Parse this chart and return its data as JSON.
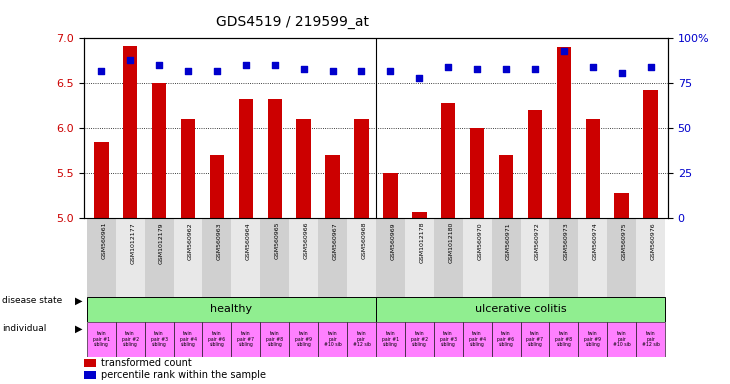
{
  "title": "GDS4519 / 219599_at",
  "samples": [
    "GSM560961",
    "GSM1012177",
    "GSM1012179",
    "GSM560962",
    "GSM560963",
    "GSM560964",
    "GSM560965",
    "GSM560966",
    "GSM560967",
    "GSM560968",
    "GSM560969",
    "GSM1012178",
    "GSM1012180",
    "GSM560970",
    "GSM560971",
    "GSM560972",
    "GSM560973",
    "GSM560974",
    "GSM560975",
    "GSM560976"
  ],
  "bar_values": [
    5.85,
    6.92,
    6.5,
    6.1,
    5.7,
    6.33,
    6.33,
    6.1,
    5.7,
    6.1,
    5.5,
    5.07,
    6.28,
    6.0,
    5.7,
    6.2,
    6.9,
    6.1,
    5.28,
    6.42
  ],
  "dot_values": [
    82,
    88,
    85,
    82,
    82,
    85,
    85,
    83,
    82,
    82,
    82,
    78,
    84,
    83,
    83,
    83,
    93,
    84,
    81,
    84
  ],
  "ylim_left": [
    5.0,
    7.0
  ],
  "ylim_right": [
    0,
    100
  ],
  "yticks_left": [
    5.0,
    5.5,
    6.0,
    6.5,
    7.0
  ],
  "yticks_right": [
    0,
    25,
    50,
    75,
    100
  ],
  "ytick_labels_right": [
    "0",
    "25",
    "50",
    "75",
    "100%"
  ],
  "bar_color": "#cc0000",
  "dot_color": "#0000cc",
  "grid_lines": [
    5.5,
    6.0,
    6.5
  ],
  "healthy_label": "healthy",
  "uc_label": "ulcerative colitis",
  "healthy_color": "#90ee90",
  "uc_color": "#90ee90",
  "individual_labels": [
    "twin\npair #1\nsibling",
    "twin\npair #2\nsibling",
    "twin\npair #3\nsibling",
    "twin\npair #4\nsibling",
    "twin\npair #6\nsibling",
    "twin\npair #7\nsibling",
    "twin\npair #8\nsibling",
    "twin\npair #9\nsibling",
    "twin\npair\n#10 sib",
    "twin\npair\n#12 sib",
    "twin\npair #1\nsibling",
    "twin\npair #2\nsibling",
    "twin\npair #3\nsibling",
    "twin\npair #4\nsibling",
    "twin\npair #6\nsibling",
    "twin\npair #7\nsibling",
    "twin\npair #8\nsibling",
    "twin\npair #9\nsibling",
    "twin\npair\n#10 sib",
    "twin\npair\n#12 sib"
  ],
  "indiv_color": "#ff80ff",
  "legend_bar_label": "transformed count",
  "legend_dot_label": "percentile rank within the sample",
  "bg_color": "#ffffff",
  "tick_label_color_left": "#cc0000",
  "tick_label_color_right": "#0000cc",
  "bar_width": 0.5,
  "xtick_bg_colors": [
    "#d0d0d0",
    "#e8e8e8"
  ]
}
